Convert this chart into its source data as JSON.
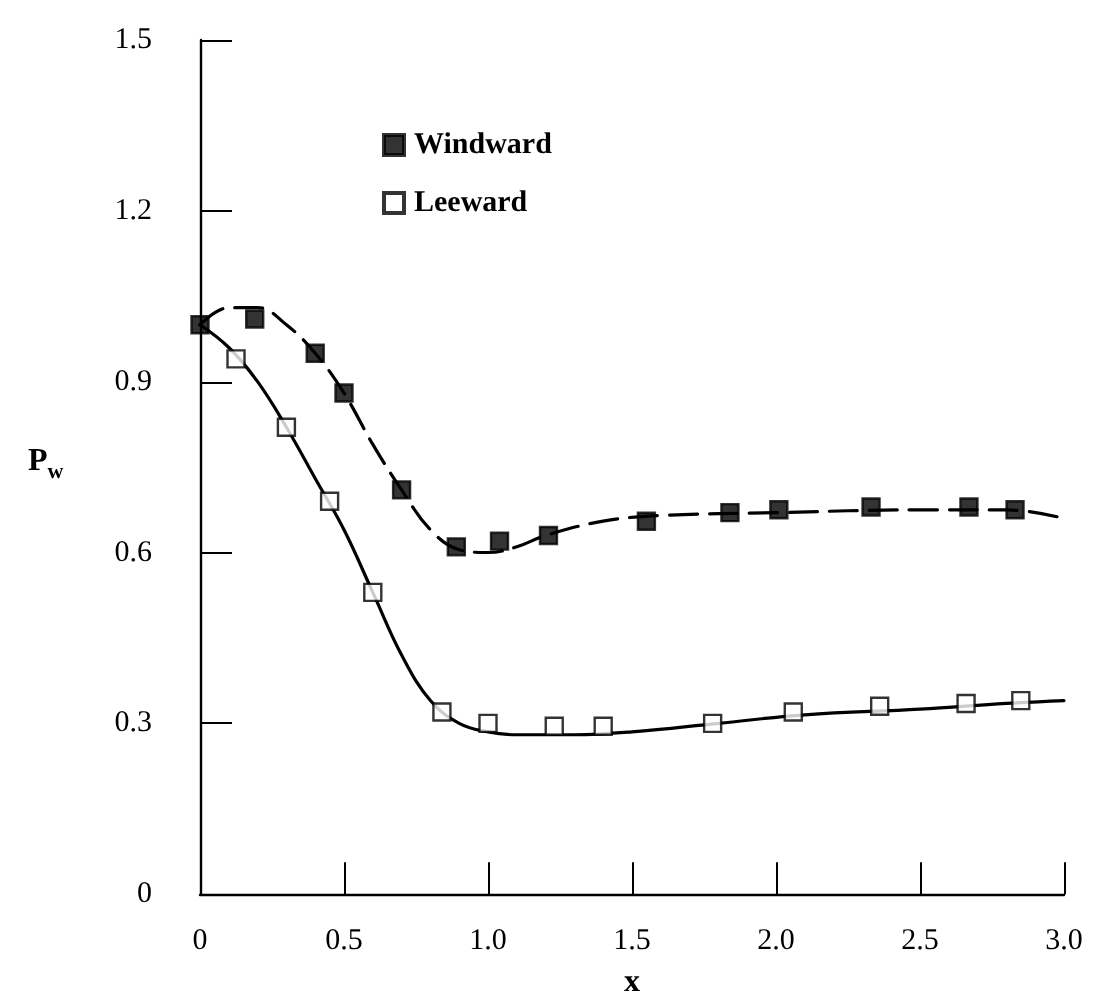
{
  "chart_data": {
    "type": "scatter",
    "xlabel": "x",
    "ylabel": "P$_{w}$",
    "xlim": [
      0,
      3
    ],
    "ylim": [
      0,
      1.5
    ],
    "xticks": [
      0,
      0.5,
      {
        "value": 1,
        "label": "1.0"
      },
      1.5,
      {
        "value": 2,
        "label": "2.0"
      },
      2.5,
      {
        "value": 3,
        "label": "3.0"
      }
    ],
    "yticks": [
      0,
      0.3,
      0.6,
      0.9,
      1.2,
      1.5
    ],
    "grid": false,
    "legend": "top left",
    "marker": "square",
    "series": [
      {
        "name": "Windward",
        "type": "scatter",
        "color": "#000000",
        "x": [
          0,
          0.19,
          0.4,
          0.5,
          0.7,
          0.89,
          1.04,
          1.21,
          1.55,
          1.84,
          2.01,
          2.33,
          2.67,
          2.83
        ],
        "values": [
          1.0,
          1.01,
          0.95,
          0.88,
          0.71,
          0.61,
          0.62,
          0.63,
          0.655,
          0.67,
          0.675,
          0.68,
          0.68,
          0.675
        ]
      },
      {
        "name": "Leeward",
        "type": "scatter",
        "color": "#ffffff",
        "x": [
          0.125,
          0.3,
          0.45,
          0.6,
          0.84,
          1.0,
          1.23,
          1.4,
          1.78,
          2.06,
          2.36,
          2.66,
          2.85
        ],
        "values": [
          0.94,
          0.82,
          0.69,
          0.53,
          0.32,
          0.3,
          0.295,
          0.295,
          0.3,
          0.32,
          0.33,
          0.335,
          0.34
        ]
      },
      {
        "type": "line",
        "color": "#000000",
        "line_style": "dashed",
        "marker": "none",
        "x": [
          0,
          0.1,
          0.2,
          0.3,
          0.4,
          0.5,
          0.6,
          0.7,
          0.8,
          0.9,
          1.0,
          1.1,
          1.2,
          1.4,
          1.6,
          2.0,
          2.5,
          2.8,
          3.0
        ],
        "values": [
          1.0,
          1.03,
          1.03,
          1.0,
          0.95,
          0.88,
          0.79,
          0.71,
          0.64,
          0.605,
          0.6,
          0.61,
          0.63,
          0.655,
          0.665,
          0.67,
          0.675,
          0.675,
          0.66
        ]
      },
      {
        "type": "line",
        "color": "#000000",
        "line_style": "solid",
        "marker": "none",
        "x": [
          0,
          0.1,
          0.2,
          0.3,
          0.4,
          0.5,
          0.6,
          0.7,
          0.8,
          0.9,
          1.0,
          1.1,
          1.3,
          1.5,
          1.8,
          2.1,
          2.5,
          2.8,
          3.0
        ],
        "values": [
          1.0,
          0.96,
          0.9,
          0.82,
          0.73,
          0.64,
          0.53,
          0.42,
          0.34,
          0.3,
          0.285,
          0.28,
          0.28,
          0.285,
          0.3,
          0.315,
          0.325,
          0.335,
          0.34
        ]
      }
    ]
  }
}
